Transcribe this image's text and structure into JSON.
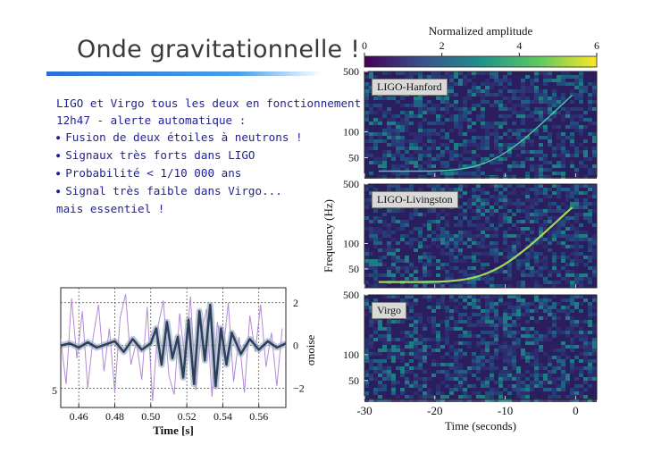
{
  "slide": {
    "title": "Onde gravitationnelle !",
    "lines": [
      {
        "text": "LIGO et Virgo tous les deux en fonctionnement",
        "bullet": false
      },
      {
        "text": "12h47 - alerte automatique :",
        "bullet": false
      },
      {
        "text": "Fusion de deux étoiles à neutrons !",
        "bullet": true
      },
      {
        "text": "Signaux très forts dans LIGO",
        "bullet": true
      },
      {
        "text": "Probabilité < 1/10 000 ans",
        "bullet": true
      },
      {
        "text": "Signal très faible dans Virgo...",
        "bullet": true
      },
      {
        "text": "mais essentiel !",
        "bullet": false
      }
    ],
    "accent_color": "#3a8be0",
    "text_color": "#1f1f96"
  },
  "chart_data": [
    {
      "type": "line",
      "xlabel": "Time [s]",
      "ylabel": "σnoise",
      "xticks": [
        "0.46",
        "0.48",
        "0.50",
        "0.52",
        "0.54",
        "0.56"
      ],
      "yticks": [
        "−2",
        "0",
        "2"
      ],
      "left_tick": "5",
      "xlim": [
        0.45,
        0.575
      ],
      "ylim": [
        -2.9,
        2.7
      ],
      "series": [
        {
          "color": "#b38ad6",
          "x": [
            0.45,
            0.453,
            0.456,
            0.459,
            0.462,
            0.465,
            0.468,
            0.471,
            0.474,
            0.477,
            0.48,
            0.483,
            0.486,
            0.489,
            0.492,
            0.495,
            0.498,
            0.501,
            0.504,
            0.507,
            0.51,
            0.513,
            0.516,
            0.519,
            0.522,
            0.525,
            0.528,
            0.531,
            0.534,
            0.537,
            0.54,
            0.543,
            0.546,
            0.549,
            0.552,
            0.555,
            0.558,
            0.561,
            0.564,
            0.567,
            0.57,
            0.573
          ],
          "y": [
            0.3,
            -1.8,
            2.2,
            -0.6,
            1.6,
            -2.0,
            0.4,
            1.9,
            -1.2,
            0.8,
            -2.2,
            1.3,
            2.4,
            -0.9,
            0.2,
            -1.6,
            1.8,
            -2.6,
            0.9,
            2.1,
            -1.4,
            -2.3,
            1.5,
            -0.7,
            2.3,
            -2.1,
            0.6,
            1.7,
            -2.4,
            1.1,
            -0.5,
            2.0,
            -1.7,
            0.4,
            -2.2,
            1.4,
            -0.3,
            1.9,
            -1.0,
            0.6,
            -1.9,
            0.8
          ]
        },
        {
          "color": "#2d3f5c",
          "x": [
            0.45,
            0.455,
            0.46,
            0.465,
            0.47,
            0.475,
            0.48,
            0.485,
            0.49,
            0.495,
            0.5,
            0.503,
            0.506,
            0.509,
            0.512,
            0.515,
            0.518,
            0.521,
            0.524,
            0.527,
            0.53,
            0.533,
            0.536,
            0.539,
            0.542,
            0.545,
            0.55,
            0.555,
            0.56,
            0.565,
            0.57,
            0.575
          ],
          "y": [
            0.0,
            0.1,
            -0.1,
            0.15,
            -0.1,
            0.05,
            0.2,
            -0.3,
            0.3,
            -0.2,
            0.1,
            0.8,
            -0.9,
            1.1,
            -0.6,
            0.4,
            -1.5,
            1.2,
            -1.8,
            1.6,
            -0.7,
            1.9,
            -1.9,
            0.8,
            -0.9,
            0.6,
            -0.4,
            0.3,
            -0.2,
            0.2,
            -0.1,
            0.1
          ]
        }
      ]
    },
    {
      "type": "heatmap",
      "title": "Normalized amplitude",
      "colorbar_ticks": [
        "0",
        "2",
        "4",
        "6"
      ],
      "colorbar_range": [
        0,
        6
      ],
      "xlabel": "Time (seconds)",
      "ylabel": "Frequency (Hz)",
      "xticks": [
        "-30",
        "-20",
        "-10",
        "0"
      ],
      "xlim": [
        -30,
        3
      ],
      "yticks": [
        "500",
        "100",
        "50"
      ],
      "ylim": [
        30,
        500
      ],
      "yscale": "log",
      "panels": [
        {
          "label": "LIGO-Hanford",
          "chirp": true
        },
        {
          "label": "LIGO-Livingston",
          "chirp": true
        },
        {
          "label": "Virgo",
          "chirp": false
        }
      ]
    }
  ]
}
